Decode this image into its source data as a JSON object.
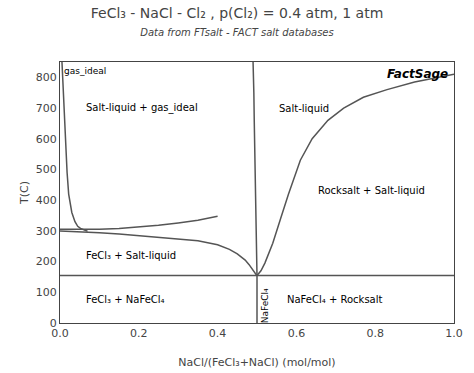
{
  "chart_data": {
    "type": "line",
    "title": "FeCl₃ - NaCl - Cl₂ , p(Cl₂) = 0.4 atm, 1 atm",
    "subtitle": "Data from FTsalt - FACT salt databases",
    "xlabel": "NaCl/(FeCl₃+NaCl) (mol/mol)",
    "ylabel": "T(C)",
    "color": "#555555",
    "grid": false,
    "xlim": [
      0,
      1
    ],
    "ylim": [
      0,
      850
    ],
    "xticks": [
      {
        "value": 0,
        "label": "0.0"
      },
      0.2,
      0.4,
      0.6,
      0.8,
      {
        "value": 1,
        "label": "1.0"
      }
    ],
    "yticks": [
      0,
      100,
      200,
      300,
      400,
      500,
      600,
      700,
      800
    ],
    "series": [
      {
        "x": [
          0,
          1
        ],
        "values": [
          155,
          155
        ]
      },
      {
        "x": [
          0.5,
          0.5
        ],
        "values": [
          0,
          155
        ]
      },
      {
        "x": [
          0.005,
          0.006,
          0.007,
          0.008,
          0.01,
          0.012,
          0.015,
          0.018,
          0.022,
          0.03,
          0.03,
          0.038,
          0.045,
          0.052,
          0.058,
          0.062,
          0.065,
          0.068,
          0.07
        ],
        "values": [
          850,
          820,
          790,
          760,
          700,
          640,
          560,
          490,
          420,
          360,
          360,
          330,
          315,
          308,
          304,
          302,
          301,
          300,
          300
        ]
      },
      {
        "x": [
          0.0,
          0.05,
          0.1,
          0.15,
          0.2,
          0.25,
          0.3,
          0.35,
          0.4
        ],
        "values": [
          305,
          305,
          305,
          308,
          312,
          318,
          326,
          335,
          348
        ]
      },
      {
        "x": [
          0.0,
          0.05,
          0.1,
          0.15,
          0.2,
          0.25,
          0.3,
          0.35,
          0.4,
          0.43,
          0.45,
          0.47,
          0.48,
          0.49,
          0.495,
          0.498,
          0.5
        ],
        "values": [
          300,
          298,
          294,
          290,
          285,
          280,
          275,
          268,
          255,
          240,
          225,
          205,
          190,
          170,
          162,
          157,
          155
        ]
      },
      {
        "x": [
          0.49,
          0.491,
          0.492,
          0.493,
          0.494,
          0.496,
          0.498,
          0.5
        ],
        "values": [
          850,
          820,
          750,
          660,
          560,
          390,
          250,
          155
        ]
      },
      {
        "x": [
          0.5,
          0.51,
          0.52,
          0.54,
          0.56,
          0.58,
          0.61,
          0.64,
          0.68,
          0.72,
          0.77,
          0.83,
          0.9,
          0.96,
          1.0
        ],
        "values": [
          155,
          170,
          195,
          260,
          340,
          420,
          530,
          600,
          660,
          700,
          735,
          760,
          785,
          800,
          810
        ]
      }
    ],
    "annotations": [
      {
        "text": "gas_ideal",
        "x": 0.005,
        "y": 820
      },
      {
        "text": "Salt-liquid + gas_ideal",
        "x": 0.06,
        "y": 700
      },
      {
        "text": "Salt-liquid",
        "x": 0.55,
        "y": 700
      },
      {
        "text": "FeCl₃ + Salt-liquid",
        "x": 0.06,
        "y": 220
      },
      {
        "text": "Rocksalt + Salt-liquid",
        "x": 0.65,
        "y": 430
      },
      {
        "text": "FeCl₃ + NaFeCl₄",
        "x": 0.06,
        "y": 75
      },
      {
        "text": "NaFeCl₄ + Rocksalt",
        "x": 0.57,
        "y": 75
      },
      {
        "text": "NaFeCl₄",
        "x": 0.503,
        "y": 55
      },
      {
        "text": "FactSage"
      }
    ]
  }
}
